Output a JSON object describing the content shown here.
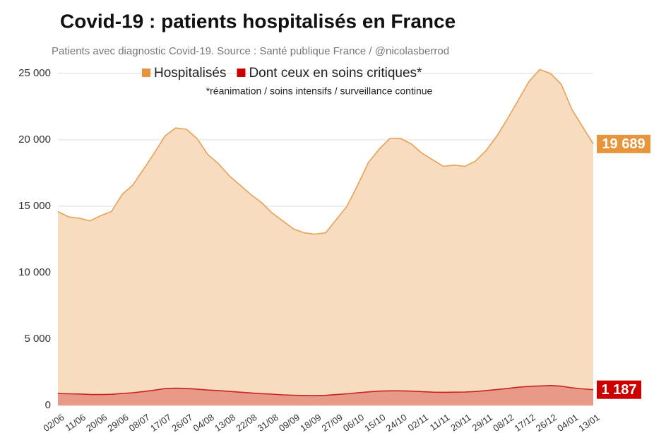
{
  "chart_data": {
    "type": "area",
    "title": "Covid-19 : patients hospitalisés en France",
    "subtitle": "Patients avec diagnostic Covid-19. Source : Santé publique France / @nicolasberrod",
    "annotation": "*réanimation / soins intensifs / surveillance continue",
    "categories": [
      "02/06",
      null,
      "11/06",
      null,
      "20/06",
      null,
      "29/06",
      null,
      "08/07",
      null,
      "17/07",
      null,
      "26/07",
      null,
      "04/08",
      null,
      "13/08",
      null,
      "22/08",
      null,
      "31/08",
      null,
      "09/09",
      null,
      "18/09",
      null,
      "27/09",
      null,
      "06/10",
      null,
      "15/10",
      null,
      "24/10",
      null,
      "02/11",
      null,
      "11/11",
      null,
      "20/11",
      null,
      "29/11",
      null,
      "08/12",
      null,
      "17/12",
      null,
      "26/12",
      null,
      "04/01",
      null,
      "13/01"
    ],
    "series": [
      {
        "name": "Hospitalisés",
        "color": "#e8943a",
        "values": [
          14600,
          14200,
          14100,
          13900,
          14300,
          14600,
          15900,
          16600,
          17800,
          19000,
          20300,
          20900,
          20800,
          20100,
          18900,
          18200,
          17300,
          16600,
          15900,
          15300,
          14500,
          13900,
          13300,
          13000,
          12900,
          13000,
          14000,
          15000,
          16600,
          18300,
          19300,
          20100,
          20100,
          19700,
          19000,
          18500,
          18000,
          18100,
          18000,
          18400,
          19200,
          20300,
          21600,
          23000,
          24400,
          25300,
          25000,
          24200,
          22300,
          21000,
          19689
        ],
        "value_labels": [
          null,
          null,
          null,
          null,
          null,
          null,
          null,
          null,
          null,
          null,
          null,
          null,
          null,
          null,
          null,
          null,
          null,
          null,
          null,
          null,
          null,
          null,
          null,
          null,
          null,
          null,
          null,
          null,
          null,
          null,
          null,
          null,
          null,
          null,
          null,
          null,
          null,
          null,
          null,
          null,
          null,
          null,
          null,
          null,
          null,
          null,
          null,
          null,
          null,
          null,
          "19 689"
        ]
      },
      {
        "name": "Dont ceux en soins critiques*",
        "color": "#cc0000",
        "values": [
          900,
          880,
          860,
          830,
          820,
          840,
          900,
          960,
          1050,
          1150,
          1270,
          1300,
          1280,
          1230,
          1160,
          1120,
          1060,
          1000,
          940,
          890,
          850,
          800,
          770,
          750,
          740,
          760,
          820,
          880,
          950,
          1020,
          1080,
          1100,
          1100,
          1080,
          1040,
          1000,
          990,
          1000,
          1010,
          1050,
          1120,
          1200,
          1280,
          1370,
          1430,
          1470,
          1500,
          1450,
          1330,
          1250,
          1187
        ],
        "value_labels": [
          null,
          null,
          null,
          null,
          null,
          null,
          null,
          null,
          null,
          null,
          null,
          null,
          null,
          null,
          null,
          null,
          null,
          null,
          null,
          null,
          null,
          null,
          null,
          null,
          null,
          null,
          null,
          null,
          null,
          null,
          null,
          null,
          null,
          null,
          null,
          null,
          null,
          null,
          null,
          null,
          null,
          null,
          null,
          null,
          null,
          null,
          null,
          null,
          null,
          null,
          "1 187"
        ]
      }
    ],
    "ylim": [
      0,
      25000
    ],
    "yticks": [
      {
        "value": 0,
        "label": "0"
      },
      {
        "value": 5000,
        "label": "5 000"
      },
      {
        "value": 10000,
        "label": "10 000"
      },
      {
        "value": 15000,
        "label": "15 000"
      },
      {
        "value": 20000,
        "label": "20 000"
      },
      {
        "value": 25000,
        "label": "25 000"
      }
    ],
    "grid": true,
    "legend": "top"
  }
}
